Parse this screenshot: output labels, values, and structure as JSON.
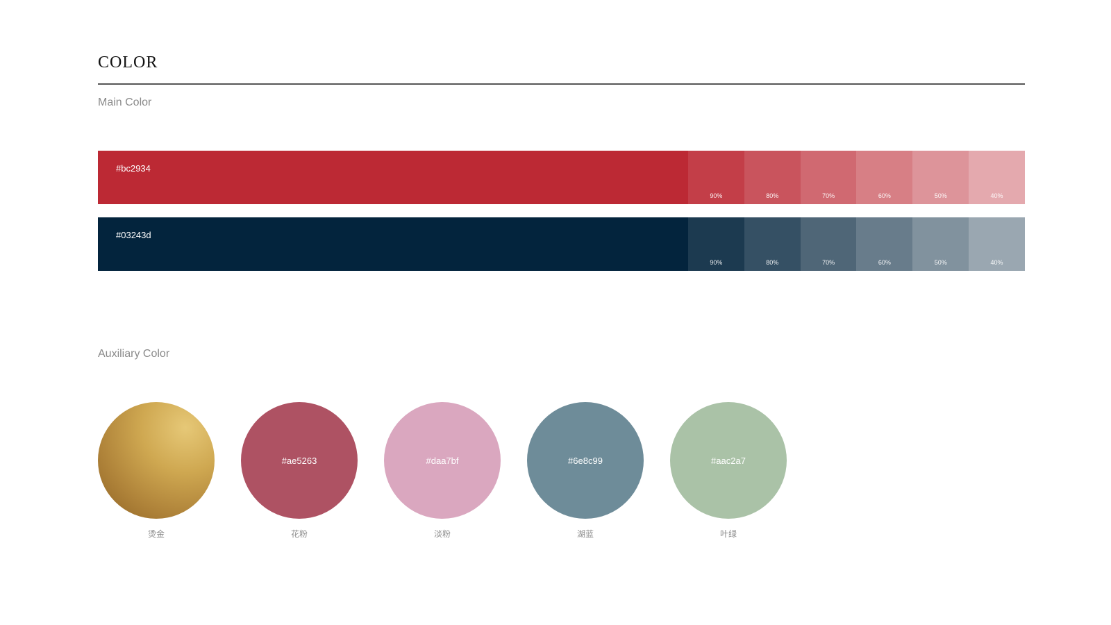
{
  "title": "COLOR",
  "main_color": {
    "label": "Main Color",
    "swatches": [
      {
        "hex": "#bc2934",
        "tints": [
          {
            "label": "90%",
            "color": "#c33e48"
          },
          {
            "label": "80%",
            "color": "#c9545d"
          },
          {
            "label": "70%",
            "color": "#d06971"
          },
          {
            "label": "60%",
            "color": "#d77f85"
          },
          {
            "label": "50%",
            "color": "#dd949a"
          },
          {
            "label": "40%",
            "color": "#e4a9ae"
          }
        ]
      },
      {
        "hex": "#03243d",
        "tints": [
          {
            "label": "90%",
            "color": "#1c3a50"
          },
          {
            "label": "80%",
            "color": "#355064"
          },
          {
            "label": "70%",
            "color": "#4f6677"
          },
          {
            "label": "60%",
            "color": "#687c8b"
          },
          {
            "label": "50%",
            "color": "#81929e"
          },
          {
            "label": "40%",
            "color": "#9aa7b1"
          }
        ]
      }
    ]
  },
  "auxiliary_color": {
    "label": "Auxiliary Color",
    "swatches": [
      {
        "hex": "",
        "name": "烫金",
        "color": "#c29a48"
      },
      {
        "hex": "#ae5263",
        "name": "花粉",
        "color": "#ae5263"
      },
      {
        "hex": "#daa7bf",
        "name": "淡粉",
        "color": "#daa7bf"
      },
      {
        "hex": "#6e8c99",
        "name": "湖蓝",
        "color": "#6e8c99"
      },
      {
        "hex": "#aac2a7",
        "name": "叶绿",
        "color": "#aac2a7"
      }
    ]
  }
}
